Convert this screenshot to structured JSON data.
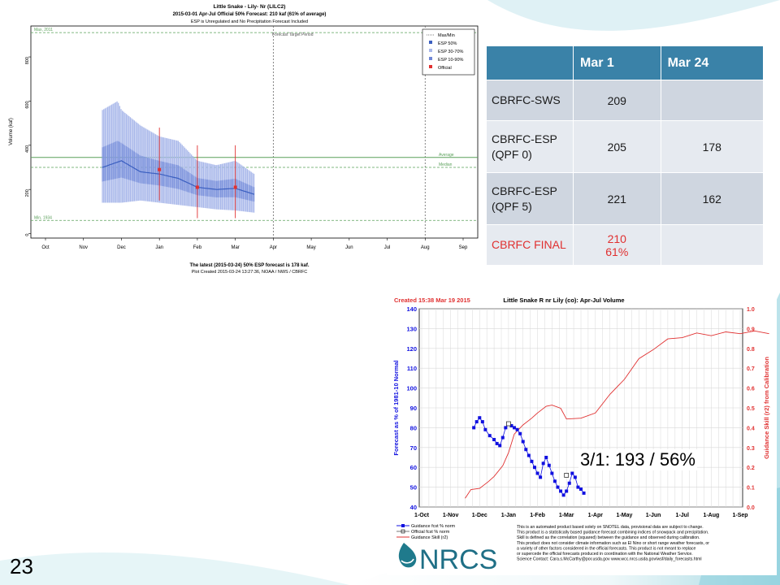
{
  "slide": {
    "number": "23",
    "annotation": "3/1: 193 / 56%"
  },
  "colors": {
    "header": "#3a82a8",
    "row_odd": "#cfd6e0",
    "row_even": "#e6eaf0",
    "final_red": "#e03030",
    "esp_dark": "#3b5fc0",
    "esp_light": "#a9b8ea",
    "guidance_blue": "#1010e0",
    "skill_red": "#e03030"
  },
  "table": {
    "headers": [
      "",
      "Mar 1",
      "Mar 24"
    ],
    "rows": [
      {
        "name": "CBRFC-SWS",
        "mar1": "209",
        "mar24": ""
      },
      {
        "name": "CBRFC-ESP (QPF 0)",
        "mar1": "205",
        "mar24": "178"
      },
      {
        "name": "CBRFC-ESP (QPF 5)",
        "mar1": "221",
        "mar24": "162"
      },
      {
        "name": "CBRFC FINAL",
        "mar1": "210",
        "mar1_pct": "61%",
        "mar24": ""
      }
    ]
  },
  "chart_data": [
    {
      "type": "line",
      "title": "Little Snake - Lily- Nr (LILC2)",
      "subtitle": "2015-03-01 Apr-Jul Official 50% Forecast: 210 kaf (61% of average)",
      "subtitle2": "ESP is Unregulated and No Precipitation Forecast Included",
      "ylabel": "Volume (kaf)",
      "ylim": [
        -20,
        940
      ],
      "yticks": [
        "0",
        "200",
        "400",
        "600",
        "800"
      ],
      "categories": [
        "Oct",
        "Nov",
        "Dec",
        "Jan",
        "Feb",
        "Mar",
        "Apr",
        "May",
        "Jun",
        "Jul",
        "Aug",
        "Sep"
      ],
      "legend": [
        "Max/Min",
        "ESP 50%",
        "ESP 30-70%",
        "ESP 10-90%",
        "Official"
      ],
      "reference_lines": [
        {
          "label": "Max, 2011",
          "value": 910
        },
        {
          "label": "Average",
          "value": 345
        },
        {
          "label": "Median",
          "value": 300
        },
        {
          "label": "Min, 1934",
          "value": 60
        }
      ],
      "forecast_period_label": "Forecast Target Period",
      "footer1": "The latest (2015-03-24) 50% ESP forecast is 178 kaf.",
      "footer2": "Plot Created 2015-03-24 13:27:36, NOAA / NWS / CBRFC",
      "series": [
        {
          "name": "ESP 50%",
          "x": [
            1.5,
            2.0,
            2.5,
            3.0,
            3.5,
            4.0,
            4.5,
            5.0,
            5.5
          ],
          "values": [
            300,
            330,
            280,
            270,
            250,
            210,
            200,
            205,
            178
          ]
        },
        {
          "name": "ESP 10-90% upper",
          "x": [
            1.5,
            1.9,
            2.0,
            2.5,
            3.0,
            3.5,
            4.0,
            4.5,
            5.0,
            5.5
          ],
          "values": [
            560,
            600,
            560,
            490,
            440,
            420,
            330,
            310,
            330,
            270
          ]
        },
        {
          "name": "ESP 10-90% lower",
          "x": [
            1.5,
            2.0,
            2.5,
            3.0,
            3.5,
            4.0,
            4.5,
            5.0,
            5.5
          ],
          "values": [
            140,
            140,
            150,
            140,
            130,
            120,
            110,
            105,
            95
          ]
        },
        {
          "name": "Official",
          "x": [
            3.0,
            4.0,
            5.0
          ],
          "values": [
            290,
            210,
            210
          ]
        }
      ]
    },
    {
      "type": "line",
      "title": "Little Snake R nr Lily (co): Apr-Jul Volume",
      "created": "Created 15:38 Mar 19 2015",
      "ylabel": "Forecast as % of 1981-10 Normal",
      "y2label": "Guidance Skill (r2) from Calibration",
      "ylim": [
        40,
        140
      ],
      "yticks": [
        "40",
        "50",
        "60",
        "70",
        "80",
        "90",
        "100",
        "110",
        "120",
        "130",
        "140"
      ],
      "y2lim": [
        0,
        1.0
      ],
      "y2ticks": [
        "0.0",
        "0.1",
        "0.2",
        "0.3",
        "0.4",
        "0.5",
        "0.6",
        "0.7",
        "0.8",
        "0.9",
        "1.0"
      ],
      "categories": [
        "1-Oct",
        "1-Nov",
        "1-Dec",
        "1-Jan",
        "1-Feb",
        "1-Mar",
        "1-Apr",
        "1-May",
        "1-Jun",
        "1-Jul",
        "1-Aug",
        "1-Sep"
      ],
      "legend": [
        "Guidance fcst % norm",
        "Official fcst % norm",
        "Guidance Skill (r2)"
      ],
      "notes": [
        "This is an automated product based solely on SNOTEL data, provisional data are subject to change.",
        "This product is a statistically based guidance forecast combining indices of snowpack and precipitation.",
        "Skill is defined as the correlation (squared) between the guidance and observed during calibration.",
        "This product does not consider climate information such as El Nino or short range weather forecasts, or",
        "a variety of other factors considered in the official forecasts. This product is not meant to replace",
        "or supercede the official forecasts produced in coordination with the National Weather Service.",
        "Science Contact: Cara.s.McCarthy@por.usda.gov www.wcc.nrcs.usda.gov/wsf/daily_forecasts.html"
      ],
      "logo": "NRCS",
      "series": [
        {
          "name": "Guidance fcst % norm",
          "x": [
            1.8,
            1.9,
            2.0,
            2.1,
            2.2,
            2.35,
            2.5,
            2.6,
            2.7,
            2.8,
            2.9,
            3.0,
            3.1,
            3.2,
            3.3,
            3.4,
            3.5,
            3.6,
            3.7,
            3.8,
            3.9,
            4.0,
            4.1,
            4.2,
            4.3,
            4.4,
            4.5,
            4.6,
            4.7,
            4.8,
            4.9,
            5.0,
            5.1,
            5.2,
            5.3,
            5.4,
            5.5,
            5.6
          ],
          "values": [
            80,
            83,
            85,
            83,
            79,
            76,
            74,
            72,
            71,
            75,
            80,
            82,
            81,
            80,
            79,
            77,
            73,
            69,
            66,
            63,
            60,
            57,
            55,
            62,
            65,
            61,
            57,
            53,
            50,
            48,
            46,
            48,
            52,
            57,
            55,
            50,
            49,
            47
          ]
        },
        {
          "name": "Official fcst % norm",
          "x": [
            3.0,
            5.0
          ],
          "values": [
            82,
            56
          ]
        },
        {
          "name": "Guidance Skill (r2)",
          "x": [
            1.5,
            1.7,
            2.0,
            2.3,
            2.5,
            2.8,
            3.0,
            3.2,
            3.5,
            3.8,
            4.0,
            4.3,
            4.5,
            4.8,
            5.0,
            5.5,
            6.0,
            6.5,
            7.0,
            7.5,
            8.0,
            8.5,
            9.0,
            9.5,
            10.0,
            10.5,
            11.0,
            11.5,
            12.0
          ],
          "values": [
            0.05,
            0.08,
            0.1,
            0.12,
            0.16,
            0.2,
            0.28,
            0.36,
            0.42,
            0.44,
            0.48,
            0.5,
            0.52,
            0.49,
            0.45,
            0.44,
            0.48,
            0.56,
            0.65,
            0.74,
            0.8,
            0.84,
            0.86,
            0.87,
            0.87,
            0.875,
            0.88,
            0.88,
            0.88
          ]
        }
      ]
    }
  ]
}
